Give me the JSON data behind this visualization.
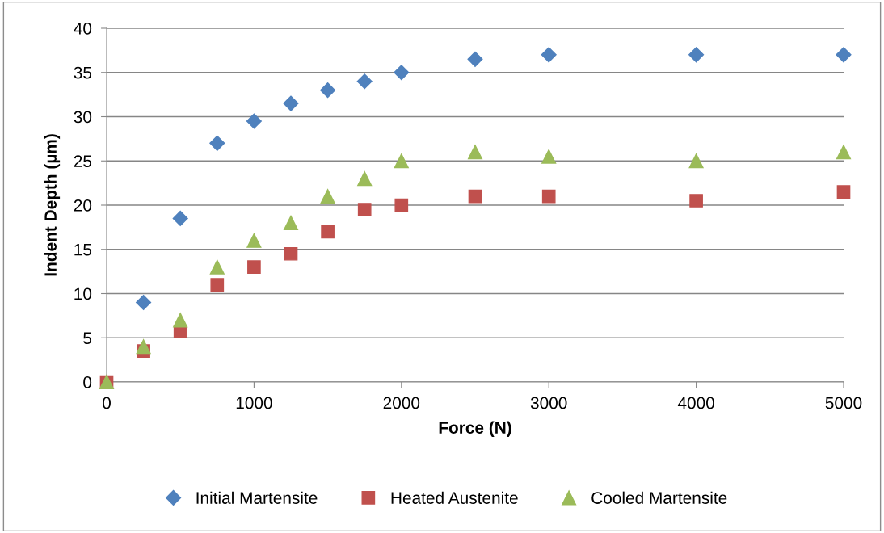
{
  "chart_data": {
    "type": "scatter",
    "xlabel": "Force (N)",
    "ylabel": "Indent Depth (µm)",
    "xlim": [
      0,
      5000
    ],
    "xticks": [
      0,
      1000,
      2000,
      3000,
      4000,
      5000
    ],
    "ylim": [
      0,
      40
    ],
    "yticks": [
      0,
      5,
      10,
      15,
      20,
      25,
      30,
      35,
      40
    ],
    "grid": "y",
    "legend": "bottom",
    "series": [
      {
        "name": "Initial Martensite",
        "color": "#4f81bd",
        "marker": "diamond",
        "x": [
          250,
          500,
          750,
          1000,
          1250,
          1500,
          1750,
          2000,
          2500,
          3000,
          4000,
          5000
        ],
        "values": [
          9,
          18.5,
          27,
          29.5,
          31.5,
          33,
          34,
          35,
          36.5,
          37,
          37,
          37
        ]
      },
      {
        "name": "Heated Austenite",
        "color": "#c0504d",
        "marker": "square",
        "x": [
          0,
          250,
          500,
          750,
          1000,
          1250,
          1500,
          1750,
          2000,
          2500,
          3000,
          4000,
          5000
        ],
        "values": [
          0,
          3.5,
          5.7,
          11,
          13,
          14.5,
          17,
          19.5,
          20,
          21,
          21,
          20.5,
          21.5
        ]
      },
      {
        "name": "Cooled Martensite",
        "color": "#9bbb59",
        "marker": "triangle",
        "x": [
          0,
          250,
          500,
          750,
          1000,
          1250,
          1500,
          1750,
          2000,
          2500,
          3000,
          4000,
          5000
        ],
        "values": [
          0,
          4,
          7,
          13,
          16,
          18,
          21,
          23,
          25,
          26,
          25.5,
          25,
          26
        ]
      }
    ]
  }
}
